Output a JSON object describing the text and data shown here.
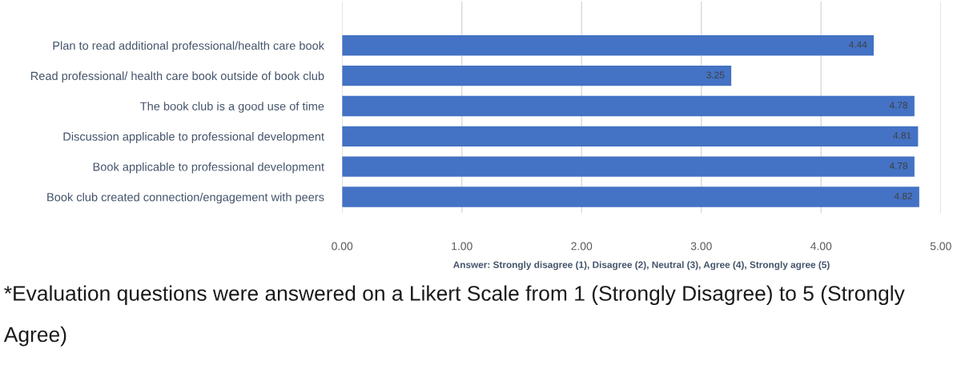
{
  "chart_data": {
    "type": "bar",
    "orientation": "horizontal",
    "categories": [
      "Plan to read additional professional/health care book",
      "Read professional/ health care book outside of book club",
      "The book club is a good use of time",
      "Discussion applicable to professional development",
      "Book applicable to professional development",
      "Book club created connection/engagement with peers"
    ],
    "values": [
      4.44,
      3.25,
      4.78,
      4.81,
      4.78,
      4.82
    ],
    "color": "#4472c4",
    "xlabel": "Answer: Strongly disagree (1), Disagree (2), Neutral (3), Agree (4), Strongly agree (5)",
    "xlim": [
      0,
      5
    ],
    "xticks": [
      {
        "value": 0,
        "label": "0.00"
      },
      {
        "value": 1,
        "label": "1.00"
      },
      {
        "value": 2,
        "label": "2.00"
      },
      {
        "value": 3,
        "label": "3.00"
      },
      {
        "value": 4,
        "label": "4.00"
      },
      {
        "value": 5,
        "label": "5.00"
      }
    ],
    "grid": "x",
    "data_labels": true,
    "annotations": [
      "*Evaluation questions were answered on a Likert Scale from 1 (Strongly Disagree) to 5 (Strongly Agree)"
    ]
  }
}
